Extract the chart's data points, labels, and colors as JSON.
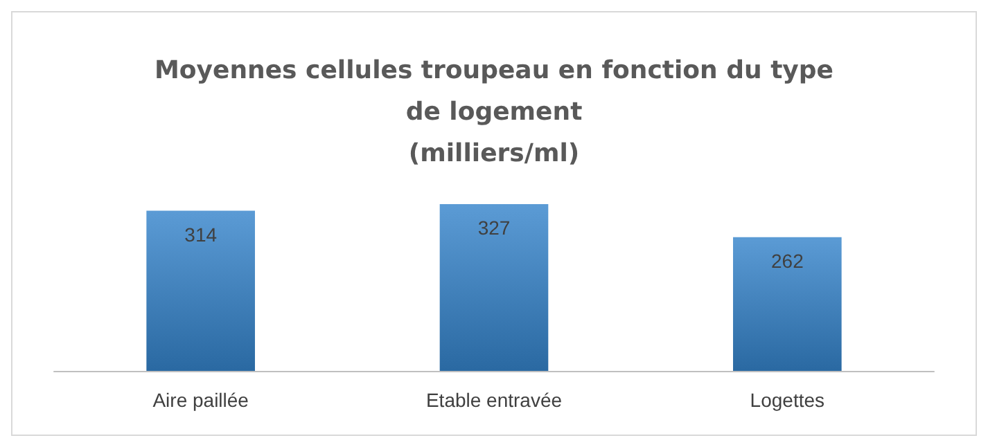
{
  "chart_data": {
    "type": "bar",
    "title": "Moyennes cellules troupeau en fonction du type\nde logement\n(milliers/ml)",
    "categories": [
      "Aire paillée",
      "Etable entravée",
      "Logettes"
    ],
    "values": [
      314,
      327,
      262
    ],
    "color": "#5b9bd5",
    "data_labels": true
  }
}
